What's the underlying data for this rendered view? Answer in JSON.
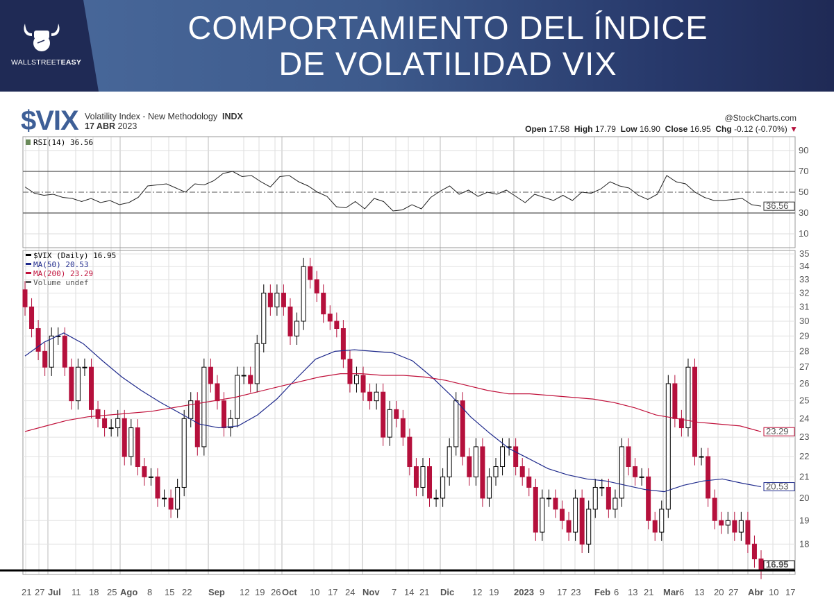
{
  "header": {
    "title_line1": "COMPORTAMIENTO DEL ÍNDICE",
    "title_line2": "DE VOLATILIDAD VIX",
    "logo_text_a": "WALLSTREET",
    "logo_text_b": "EASY"
  },
  "info": {
    "symbol": "$VIX",
    "description": "Volatility Index - New Methodology",
    "exchange": "INDX",
    "date_bold": "17 ABR",
    "date_year": "2023",
    "source": "@StockCharts.com",
    "open_label": "Open",
    "open": "17.58",
    "high_label": "High",
    "high": "17.79",
    "low_label": "Low",
    "low": "16.90",
    "close_label": "Close",
    "close": "16.95",
    "chg_label": "Chg",
    "chg": "-0.12 (-0.70%)"
  },
  "colors": {
    "ma50": "#1f2a8c",
    "ma200": "#c0103a",
    "down": "#b5103c",
    "up": "#000000"
  },
  "chart_data": [
    {
      "type": "line",
      "title": "RSI(14) 36.56",
      "ylim": [
        0,
        100
      ],
      "yticks": [
        10,
        30,
        50,
        70,
        90
      ],
      "levels": [
        30,
        50,
        70
      ],
      "last_label": "36.56",
      "values": [
        55,
        49,
        47,
        48,
        45,
        44,
        41,
        44,
        40,
        42,
        38,
        40,
        45,
        56,
        57,
        58,
        54,
        50,
        58,
        57,
        61,
        68,
        70,
        65,
        66,
        60,
        55,
        65,
        66,
        60,
        56,
        50,
        46,
        36,
        35,
        41,
        34,
        44,
        41,
        32,
        33,
        38,
        34,
        45,
        51,
        56,
        48,
        52,
        46,
        50,
        48,
        52,
        46,
        40,
        48,
        45,
        42,
        47,
        42,
        50,
        49,
        53,
        60,
        56,
        54,
        47,
        43,
        48,
        66,
        60,
        58,
        50,
        45,
        42,
        42,
        43,
        44,
        38,
        36.56
      ]
    },
    {
      "type": "candlestick",
      "title": "$VIX (Daily) 16.95",
      "scale": "log",
      "ylim": [
        16.8,
        35.5
      ],
      "yticks": [
        18,
        19,
        20,
        21,
        22,
        23,
        24,
        25,
        26,
        27,
        28,
        29,
        30,
        31,
        32,
        33,
        34,
        35
      ],
      "legend": [
        "$VIX (Daily) 16.95",
        "MA(50) 20.53",
        "MA(200) 23.29",
        "Volume undef"
      ],
      "last_labels": {
        "close": "16.95",
        "ma50": "20.53",
        "ma200": "23.29"
      },
      "closes": [
        31,
        29.5,
        28,
        27,
        29,
        29,
        27,
        25,
        27,
        27,
        24.5,
        24,
        23.5,
        23.5,
        24,
        22,
        23.5,
        21.5,
        21,
        21,
        20,
        20,
        19.5,
        20.5,
        24,
        25,
        22.5,
        27,
        26,
        25,
        23.5,
        24,
        26.5,
        26.5,
        26,
        28.5,
        32,
        31,
        32,
        31,
        29,
        30,
        34,
        33,
        32,
        30.5,
        30,
        29.5,
        27.5,
        26,
        26.5,
        25.5,
        25,
        25.5,
        23,
        24.5,
        24,
        23,
        21.5,
        20.5,
        21.5,
        20,
        20,
        21,
        22.5,
        25,
        22,
        21,
        22.5,
        20,
        21,
        21.5,
        22.5,
        22.5,
        21.5,
        21,
        20.5,
        18.5,
        20,
        20,
        19.5,
        19,
        18.5,
        20,
        18,
        19.5,
        20.5,
        20.5,
        19.5,
        20,
        22.5,
        21.5,
        21,
        21,
        19,
        18.5,
        19.5,
        26,
        24,
        23.5,
        27,
        22,
        22,
        20,
        19,
        18.8,
        19,
        18.5,
        19,
        18,
        17.4,
        16.95
      ],
      "ma50": [
        27.7,
        28.6,
        29.2,
        28.5,
        27.4,
        26.4,
        25.6,
        24.9,
        24.3,
        23.7,
        23.5,
        23.6,
        24.2,
        25.1,
        26.3,
        27.5,
        28,
        28.1,
        28,
        27.9,
        27.4,
        26.4,
        25.3,
        24.1,
        23.2,
        22.4,
        21.9,
        21.4,
        21.1,
        20.9,
        20.8,
        20.6,
        20.4,
        20.3,
        20.6,
        20.8,
        20.9,
        20.7,
        20.53
      ],
      "ma200": [
        23.3,
        23.6,
        23.9,
        24.1,
        24.2,
        24.3,
        24.4,
        24.6,
        24.8,
        25,
        25.2,
        25.5,
        25.8,
        26.1,
        26.4,
        26.6,
        26.6,
        26.5,
        26.5,
        26.4,
        26.2,
        25.9,
        25.6,
        25.4,
        25.4,
        25.3,
        25.2,
        25.1,
        24.9,
        24.6,
        24.2,
        24,
        23.8,
        23.7,
        23.6,
        23.29
      ]
    }
  ],
  "x_axis": [
    {
      "t": "21",
      "b": false
    },
    {
      "t": "27",
      "b": false
    },
    {
      "t": "Jul",
      "b": true
    },
    {
      "t": "11",
      "b": false
    },
    {
      "t": "18",
      "b": false
    },
    {
      "t": "25",
      "b": false
    },
    {
      "t": "Ago",
      "b": true
    },
    {
      "t": "8",
      "b": false
    },
    {
      "t": "15",
      "b": false
    },
    {
      "t": "22",
      "b": false
    },
    {
      "t": "Sep",
      "b": true
    },
    {
      "t": "12",
      "b": false
    },
    {
      "t": "19",
      "b": false
    },
    {
      "t": "26",
      "b": false
    },
    {
      "t": "Oct",
      "b": true
    },
    {
      "t": "10",
      "b": false
    },
    {
      "t": "17",
      "b": false
    },
    {
      "t": "24",
      "b": false
    },
    {
      "t": "Nov",
      "b": true
    },
    {
      "t": "7",
      "b": false
    },
    {
      "t": "14",
      "b": false
    },
    {
      "t": "21",
      "b": false
    },
    {
      "t": "Dic",
      "b": true
    },
    {
      "t": "12",
      "b": false
    },
    {
      "t": "19",
      "b": false
    },
    {
      "t": "2023",
      "b": true
    },
    {
      "t": "9",
      "b": false
    },
    {
      "t": "17",
      "b": false
    },
    {
      "t": "23",
      "b": false
    },
    {
      "t": "Feb",
      "b": true
    },
    {
      "t": "6",
      "b": false
    },
    {
      "t": "13",
      "b": false
    },
    {
      "t": "21",
      "b": false
    },
    {
      "t": "Mar",
      "b": true
    },
    {
      "t": "6",
      "b": false
    },
    {
      "t": "13",
      "b": false
    },
    {
      "t": "20",
      "b": false
    },
    {
      "t": "27",
      "b": false
    },
    {
      "t": "Abr",
      "b": true
    },
    {
      "t": "10",
      "b": false
    },
    {
      "t": "17",
      "b": false
    }
  ]
}
